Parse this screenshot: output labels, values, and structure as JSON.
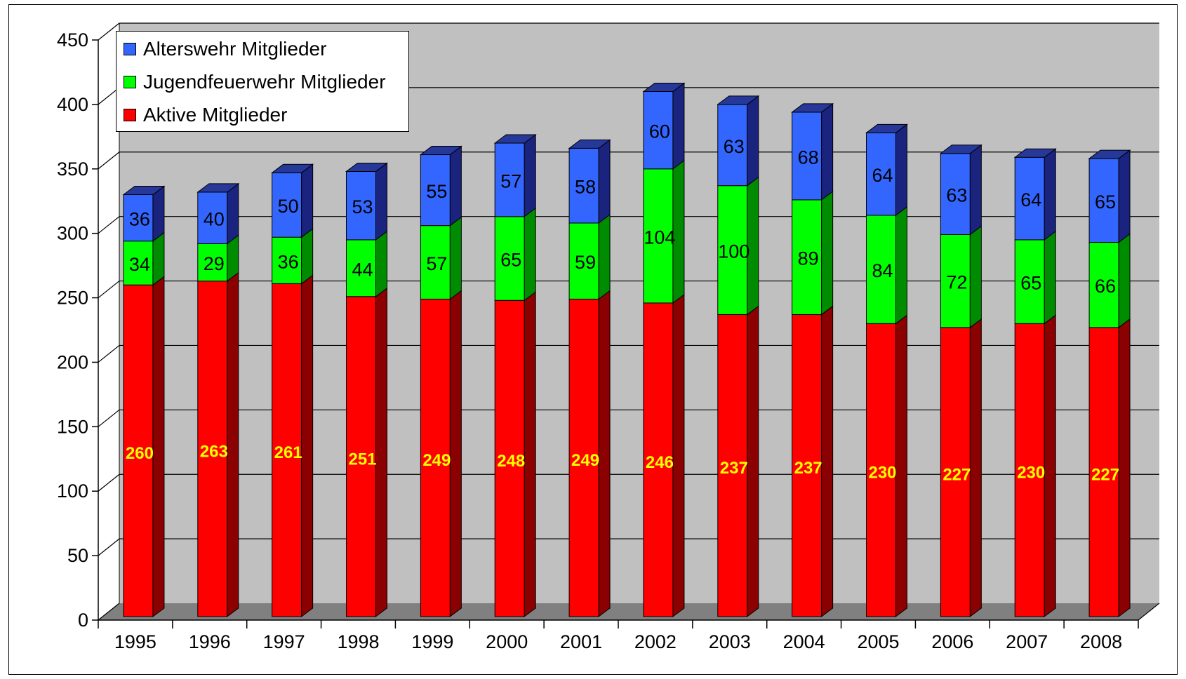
{
  "chart_data": {
    "type": "bar",
    "stacked": true,
    "three_d": true,
    "categories": [
      "1995",
      "1996",
      "1997",
      "1998",
      "1999",
      "2000",
      "2001",
      "2002",
      "2003",
      "2004",
      "2005",
      "2006",
      "2007",
      "2008"
    ],
    "series": [
      {
        "name": "Aktive Mitglieder",
        "color": "#ff0000",
        "side_color": "#8b0000",
        "top_color": "#b00000",
        "label_color": "#ffff00",
        "values": [
          260,
          263,
          261,
          251,
          249,
          248,
          249,
          246,
          237,
          237,
          230,
          227,
          230,
          227
        ]
      },
      {
        "name": "Jugendfeuerwehr Mitglieder",
        "color": "#00ff00",
        "side_color": "#008c00",
        "top_color": "#00b000",
        "label_color": "#000000",
        "values": [
          34,
          29,
          36,
          44,
          57,
          65,
          59,
          104,
          100,
          89,
          84,
          72,
          65,
          66
        ]
      },
      {
        "name": "Alterswehr Mitglieder",
        "color": "#3366ff",
        "side_color": "#1a237e",
        "top_color": "#26389a",
        "label_color": "#000000",
        "values": [
          36,
          40,
          50,
          53,
          55,
          57,
          58,
          60,
          63,
          68,
          64,
          63,
          64,
          65
        ]
      }
    ],
    "legend_order": [
      "Alterswehr Mitglieder",
      "Jugendfeuerwehr Mitglieder",
      "Aktive Mitglieder"
    ],
    "yticks": [
      0,
      50,
      100,
      150,
      200,
      250,
      300,
      350,
      400,
      450
    ],
    "ylim": [
      0,
      450
    ],
    "grid": true,
    "legend_position": "top-left",
    "wall_color": "#c0c0c0",
    "floor_color": "#808080"
  }
}
